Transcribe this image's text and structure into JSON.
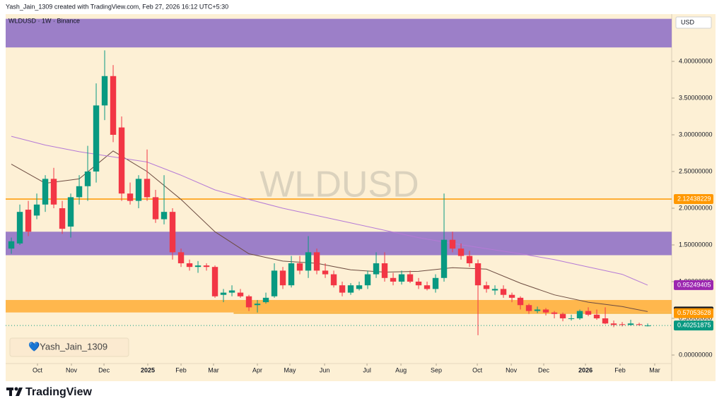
{
  "header": "Yash_Jain_1309 created with TradingView.com, Feb 27, 2026 16:12 UTC+5:30",
  "footer_logo": "TradingView",
  "chart_data": {
    "type": "candlestick",
    "title": "WLDUSD · 1W · Binance",
    "watermark": "WLDUSD",
    "currency": "USD",
    "signature": "💙Yash_Jain_1309",
    "up_color": "#089981",
    "down_color": "#f23645",
    "categories": [
      null,
      null,
      null,
      null,
      null,
      null,
      null,
      null,
      null,
      null,
      null,
      null,
      null,
      null,
      null,
      null,
      null,
      null,
      null,
      null,
      null,
      null,
      null,
      null,
      null,
      null,
      null,
      null,
      null,
      null,
      null,
      null,
      null,
      null,
      null,
      null,
      null,
      null,
      null,
      null,
      null,
      null,
      null,
      null,
      null,
      null,
      null,
      null,
      null,
      null,
      null,
      null,
      null,
      null,
      null,
      null,
      null,
      null,
      null,
      null,
      null,
      null,
      null,
      null,
      null,
      null,
      null,
      null,
      null,
      null,
      null,
      null,
      null,
      null,
      null,
      null
    ],
    "open": [
      1.45,
      1.52,
      1.98,
      1.9,
      2.05,
      2.4,
      2.0,
      1.75,
      2.15,
      2.3,
      2.5,
      3.4,
      3.8,
      3.1,
      2.2,
      2.1,
      2.4,
      2.15,
      1.85,
      1.95,
      1.4,
      1.25,
      1.2,
      1.22,
      1.2,
      0.82,
      0.85,
      0.85,
      0.8,
      0.68,
      0.72,
      0.8,
      1.15,
      0.95,
      1.25,
      1.15,
      1.4,
      1.15,
      1.1,
      0.95,
      0.85,
      0.9,
      0.95,
      1.1,
      1.25,
      1.05,
      1.0,
      1.1,
      1.0,
      0.95,
      0.9,
      1.05,
      1.57,
      1.45,
      1.35,
      1.25,
      0.95,
      0.88,
      0.9,
      0.82,
      0.78,
      0.68,
      0.6,
      0.62,
      0.58,
      0.56,
      0.5,
      0.5,
      0.6,
      0.55,
      0.5,
      0.43,
      0.42,
      0.41,
      0.42,
      0.4
    ],
    "high": [
      1.6,
      2.05,
      2.1,
      2.2,
      2.45,
      2.55,
      2.1,
      2.2,
      2.45,
      2.85,
      3.7,
      4.15,
      3.95,
      3.25,
      2.35,
      2.45,
      2.8,
      2.25,
      2.45,
      2.0,
      1.45,
      1.3,
      1.28,
      1.25,
      1.22,
      0.9,
      0.95,
      0.9,
      0.82,
      0.75,
      0.85,
      1.25,
      1.2,
      1.35,
      1.35,
      1.62,
      1.45,
      1.25,
      1.15,
      1.0,
      0.98,
      1.0,
      1.15,
      1.4,
      1.4,
      1.12,
      1.15,
      1.15,
      1.05,
      1.0,
      1.1,
      2.2,
      1.68,
      1.52,
      1.42,
      1.3,
      1.0,
      0.95,
      0.95,
      0.85,
      0.8,
      0.7,
      0.66,
      0.64,
      0.6,
      0.58,
      0.55,
      0.62,
      0.65,
      0.62,
      0.65,
      0.47,
      0.45,
      0.48,
      0.44,
      0.43
    ],
    "low": [
      1.38,
      1.5,
      1.62,
      1.85,
      1.95,
      2.0,
      1.65,
      1.6,
      2.05,
      2.1,
      2.35,
      3.2,
      2.9,
      2.1,
      2.05,
      2.0,
      2.1,
      1.8,
      1.78,
      1.3,
      1.2,
      1.15,
      1.12,
      1.15,
      0.78,
      0.72,
      0.8,
      0.78,
      0.6,
      0.58,
      0.7,
      0.78,
      0.9,
      0.92,
      1.1,
      1.05,
      1.1,
      1.05,
      0.92,
      0.8,
      0.82,
      0.88,
      0.9,
      1.05,
      1.0,
      0.95,
      0.96,
      0.98,
      0.9,
      0.88,
      0.85,
      1.0,
      1.4,
      1.3,
      1.2,
      0.27,
      0.85,
      0.82,
      0.78,
      0.72,
      0.62,
      0.56,
      0.57,
      0.54,
      0.5,
      0.46,
      0.47,
      0.48,
      0.53,
      0.48,
      0.42,
      0.38,
      0.39,
      0.4,
      0.4,
      0.39
    ],
    "close": [
      1.55,
      1.95,
      1.68,
      2.05,
      2.4,
      2.05,
      1.72,
      2.15,
      2.3,
      2.5,
      3.4,
      3.8,
      3.0,
      2.2,
      2.1,
      2.4,
      2.15,
      1.85,
      1.95,
      1.4,
      1.25,
      1.2,
      1.22,
      1.2,
      0.8,
      0.85,
      0.88,
      0.8,
      0.65,
      0.7,
      0.78,
      1.15,
      0.95,
      1.25,
      1.15,
      1.4,
      1.15,
      1.1,
      0.95,
      0.85,
      0.95,
      0.95,
      1.1,
      1.25,
      1.05,
      1.0,
      1.1,
      1.0,
      0.95,
      0.9,
      1.05,
      1.57,
      1.45,
      1.35,
      1.25,
      0.95,
      0.9,
      0.9,
      0.82,
      0.78,
      0.68,
      0.6,
      0.62,
      0.58,
      0.56,
      0.5,
      0.5,
      0.6,
      0.55,
      0.5,
      0.43,
      0.41,
      0.41,
      0.43,
      0.41,
      0.40251875
    ],
    "lines": [
      {
        "color": "#6d4c41",
        "x": [
          0,
          4,
          8,
          12,
          16,
          20,
          24,
          28,
          32,
          36,
          40,
          44,
          48,
          52,
          56,
          60,
          64,
          68,
          72,
          75
        ],
        "values": [
          2.6,
          2.34,
          2.4,
          2.78,
          2.5,
          2.12,
          1.68,
          1.38,
          1.28,
          1.25,
          1.16,
          1.13,
          1.14,
          1.19,
          1.17,
          0.98,
          0.82,
          0.72,
          0.66,
          0.59185595
        ]
      },
      {
        "color": "#b57ad6",
        "x": [
          0,
          4,
          8,
          12,
          16,
          20,
          24,
          28,
          32,
          36,
          40,
          44,
          48,
          52,
          56,
          60,
          64,
          68,
          72,
          75
        ],
        "values": [
          2.98,
          2.86,
          2.77,
          2.7,
          2.63,
          2.45,
          2.25,
          2.12,
          2.0,
          1.9,
          1.8,
          1.7,
          1.6,
          1.52,
          1.45,
          1.38,
          1.3,
          1.2,
          1.1,
          0.95249405
        ]
      }
    ],
    "zones": [
      {
        "from": 4.19,
        "to": 4.58,
        "color": "#9c7fc8"
      },
      {
        "from": 1.36,
        "to": 1.68,
        "color": "#9c7fc8"
      },
      {
        "from": 0.58,
        "to": 0.75,
        "color": "#ffb74d"
      }
    ],
    "hlines": [
      {
        "value": 2.12438229,
        "color": "#ff9800",
        "start": -0.67
      },
      {
        "value": 0.57053628,
        "color": "#f5a623",
        "start": 26.2
      }
    ],
    "price_labels": [
      {
        "value": 2.12438229,
        "color": "#ff9800"
      },
      {
        "value": 0.95249405,
        "color": "#9c27b0"
      },
      {
        "value": 0.59185595,
        "color": "#131722"
      },
      {
        "value": 0.57053628,
        "color": "#ff9800"
      },
      {
        "value": 0.40251875,
        "color": "#089981"
      }
    ],
    "xlim": [
      -0.67,
      77.83
    ],
    "ylim": [
      -0.356,
      4.644
    ],
    "yticks": [
      {
        "value": 0,
        "label": "0.00000000"
      },
      {
        "value": 0.5,
        "label": "0.50000000"
      },
      {
        "value": 1,
        "label": "1.00000000"
      },
      {
        "value": 1.5,
        "label": "1.50000000"
      },
      {
        "value": 2,
        "label": "2.00000000"
      },
      {
        "value": 2.5,
        "label": "2.50000000"
      },
      {
        "value": 3,
        "label": "3.00000000"
      },
      {
        "value": 3.5,
        "label": "3.50000000"
      },
      {
        "value": 4,
        "label": "4.00000000"
      }
    ],
    "xticks": [
      {
        "value": 3.08,
        "label": "Oct"
      },
      {
        "value": 7.08,
        "label": "Nov"
      },
      {
        "value": 10.92,
        "label": "Dec"
      },
      {
        "value": 16.08,
        "label": "2025"
      },
      {
        "value": 20,
        "label": "Feb"
      },
      {
        "value": 23.83,
        "label": "Mar"
      },
      {
        "value": 29,
        "label": "Apr"
      },
      {
        "value": 32.83,
        "label": "May"
      },
      {
        "value": 36.92,
        "label": "Jun"
      },
      {
        "value": 41.92,
        "label": "Jul"
      },
      {
        "value": 45.92,
        "label": "Aug"
      },
      {
        "value": 50.08,
        "label": "Sep"
      },
      {
        "value": 54.92,
        "label": "Oct"
      },
      {
        "value": 58.92,
        "label": "Nov"
      },
      {
        "value": 62.75,
        "label": "Dec"
      },
      {
        "value": 67.67,
        "label": "2026"
      },
      {
        "value": 71.75,
        "label": "Feb"
      },
      {
        "value": 75.83,
        "label": "Mar"
      }
    ]
  }
}
